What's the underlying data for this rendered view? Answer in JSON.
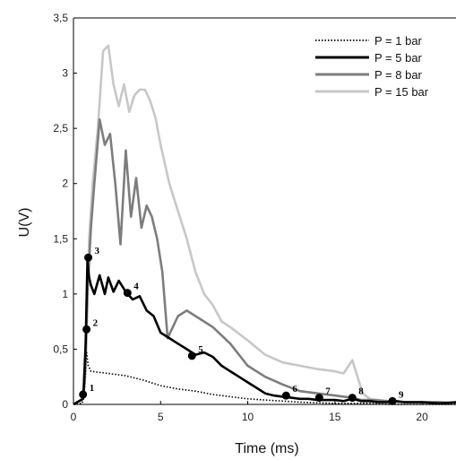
{
  "chart_data": {
    "type": "line",
    "xlabel": "Time (ms)",
    "ylabel": "U(V)",
    "xlim": [
      0,
      22
    ],
    "ylim": [
      0,
      3.5
    ],
    "xticks": [
      0,
      5,
      10,
      15,
      20
    ],
    "xtick_labels": [
      "0",
      "5",
      "10",
      "15",
      "20"
    ],
    "yticks": [
      0,
      0.5,
      1,
      1.5,
      2,
      2.5,
      3,
      3.5
    ],
    "ytick_labels": [
      "0",
      "0,5",
      "1",
      "1,5",
      "2",
      "2,5",
      "3",
      "3,5"
    ],
    "grid": false,
    "legend_position": "top-right",
    "series": [
      {
        "name": "P = 1 bar",
        "color": "#000000",
        "style": "dotted",
        "x": [
          0,
          0.5,
          0.6,
          0.75,
          0.85,
          1.0,
          1.5,
          2,
          3,
          4,
          5,
          6,
          7,
          8,
          9,
          10,
          11,
          12,
          13,
          14,
          15,
          16,
          17,
          18,
          19,
          20,
          21,
          22
        ],
        "y": [
          0,
          0.01,
          0.1,
          0.47,
          0.35,
          0.3,
          0.29,
          0.28,
          0.26,
          0.22,
          0.17,
          0.14,
          0.12,
          0.09,
          0.07,
          0.05,
          0.04,
          0.03,
          0.02,
          0.015,
          0.01,
          0.01,
          0.01,
          0.0,
          0.0,
          0.0,
          0.0,
          0.0
        ]
      },
      {
        "name": "P = 5 bar",
        "color": "#000000",
        "style": "solid",
        "x": [
          0,
          0.55,
          0.6,
          0.7,
          0.8,
          0.9,
          1.0,
          1.2,
          1.5,
          1.8,
          2.0,
          2.3,
          2.6,
          3.0,
          3.4,
          3.8,
          4.2,
          4.6,
          5.0,
          5.5,
          6.0,
          6.5,
          7.0,
          7.5,
          8.0,
          8.5,
          9.0,
          9.5,
          10.0,
          10.5,
          11.0,
          11.5,
          12.0,
          12.5,
          13.0,
          13.5,
          14.0,
          14.5,
          15.0,
          15.5,
          16.0,
          16.5,
          17.0,
          17.5,
          18.0,
          18.5,
          19.0,
          20.0,
          21.0,
          22.0
        ],
        "y": [
          0,
          0.05,
          0.2,
          0.55,
          1.3,
          1.15,
          1.08,
          1.0,
          1.17,
          1.0,
          1.15,
          1.02,
          1.12,
          1.02,
          0.95,
          0.98,
          0.85,
          0.8,
          0.65,
          0.6,
          0.55,
          0.5,
          0.45,
          0.47,
          0.43,
          0.35,
          0.3,
          0.25,
          0.2,
          0.15,
          0.1,
          0.08,
          0.07,
          0.06,
          0.05,
          0.05,
          0.04,
          0.04,
          0.04,
          0.03,
          0.05,
          0.03,
          0.03,
          0.02,
          0.02,
          0.03,
          0.02,
          0.02,
          0.01,
          0.02
        ]
      },
      {
        "name": "P = 8 bar",
        "color": "#7d7d7d",
        "style": "solid",
        "x": [
          0,
          0.55,
          0.65,
          0.8,
          1.0,
          1.2,
          1.5,
          1.8,
          2.1,
          2.4,
          2.7,
          3.0,
          3.3,
          3.6,
          3.9,
          4.2,
          4.5,
          4.8,
          5.1,
          5.4,
          5.7,
          6.0,
          6.5,
          7.0,
          7.5,
          8.0,
          9.0,
          10.0,
          11.0,
          12.0,
          13.0,
          14.0,
          15.0,
          16.0,
          16.5,
          17.0,
          18.0,
          19.0,
          20.0,
          21.0,
          22.0
        ],
        "y": [
          0,
          0.05,
          0.2,
          1.0,
          1.6,
          2.0,
          2.58,
          2.35,
          2.45,
          2.0,
          1.45,
          2.3,
          1.7,
          2.05,
          1.6,
          1.8,
          1.7,
          1.5,
          1.2,
          0.6,
          0.7,
          0.8,
          0.85,
          0.8,
          0.75,
          0.7,
          0.55,
          0.35,
          0.25,
          0.18,
          0.12,
          0.1,
          0.08,
          0.06,
          0.04,
          0.04,
          0.03,
          0.02,
          0.02,
          0.02,
          0.01
        ]
      },
      {
        "name": "P = 15 bar",
        "color": "#c7c7c7",
        "style": "solid",
        "x": [
          0,
          0.55,
          0.7,
          0.9,
          1.1,
          1.4,
          1.7,
          2.0,
          2.3,
          2.6,
          2.9,
          3.2,
          3.5,
          3.8,
          4.1,
          4.4,
          4.7,
          5.0,
          5.5,
          6.0,
          6.5,
          7.0,
          7.5,
          8.0,
          8.5,
          9.0,
          10.0,
          11.0,
          12.0,
          13.0,
          14.0,
          15.0,
          15.5,
          16.0,
          16.3,
          16.6,
          17.0,
          18.0,
          19.0,
          20.0,
          21.0,
          22.0
        ],
        "y": [
          0,
          0.05,
          0.3,
          1.5,
          2.0,
          2.5,
          3.2,
          3.25,
          2.9,
          2.7,
          2.9,
          2.65,
          2.8,
          2.85,
          2.85,
          2.75,
          2.6,
          2.35,
          2.0,
          1.75,
          1.5,
          1.2,
          1.0,
          0.9,
          0.75,
          0.7,
          0.58,
          0.45,
          0.38,
          0.35,
          0.32,
          0.3,
          0.28,
          0.4,
          0.25,
          0.1,
          0.05,
          0.03,
          0.02,
          0.02,
          0.02,
          0.01
        ]
      }
    ],
    "annotations": [
      {
        "label": "1",
        "x": 0.55,
        "y": 0.09
      },
      {
        "label": "2",
        "x": 0.75,
        "y": 0.68
      },
      {
        "label": "3",
        "x": 0.85,
        "y": 1.33
      },
      {
        "label": "4",
        "x": 3.1,
        "y": 1.01
      },
      {
        "label": "5",
        "x": 6.8,
        "y": 0.44
      },
      {
        "label": "6",
        "x": 12.2,
        "y": 0.08
      },
      {
        "label": "7",
        "x": 14.1,
        "y": 0.06
      },
      {
        "label": "8",
        "x": 16.0,
        "y": 0.06
      },
      {
        "label": "9",
        "x": 18.3,
        "y": 0.03
      }
    ]
  }
}
